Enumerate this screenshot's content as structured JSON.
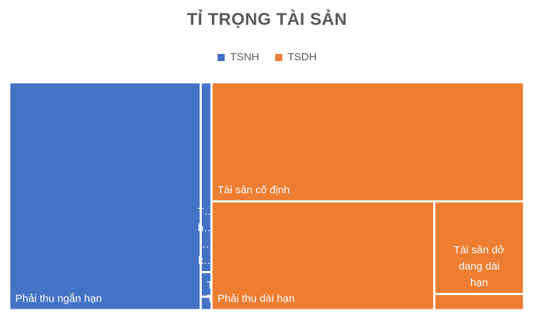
{
  "chart_data": {
    "type": "treemap",
    "title": "TỈ TRỌNG TÀI SẢN",
    "legend_position": "top",
    "series": [
      {
        "name": "TSNH",
        "color": "#4472C4",
        "items": [
          {
            "label": "Phải thu ngắn hạn",
            "display": [
              "Phải thu ngắn hạn"
            ],
            "value": 36.2
          },
          {
            "label": "T… h… t… k…",
            "display": [
              "T…",
              "h…",
              "t…",
              "k…"
            ],
            "value": 1.7
          },
          {
            "label": "T…",
            "display": [
              "T…"
            ],
            "value": 0.22
          },
          {
            "label": "T…",
            "display": [
              "T…"
            ],
            "value": 0.12
          }
        ]
      },
      {
        "name": "TSDH",
        "color": "#ED7D31",
        "items": [
          {
            "label": "Tài sản cố định",
            "display": [
              "Tài sản cố định"
            ],
            "value": 30.9
          },
          {
            "label": "Phải thu dài hạn",
            "display": [
              "Phải thu dài hạn"
            ],
            "value": 20.1
          },
          {
            "label": "Tài sản dở dang dài hạn",
            "display": [
              "Tài sản dở",
              "dang dài",
              "hạn"
            ],
            "value": 6.9
          },
          {
            "label": "",
            "display": [],
            "value": 1.2
          }
        ]
      }
    ]
  }
}
